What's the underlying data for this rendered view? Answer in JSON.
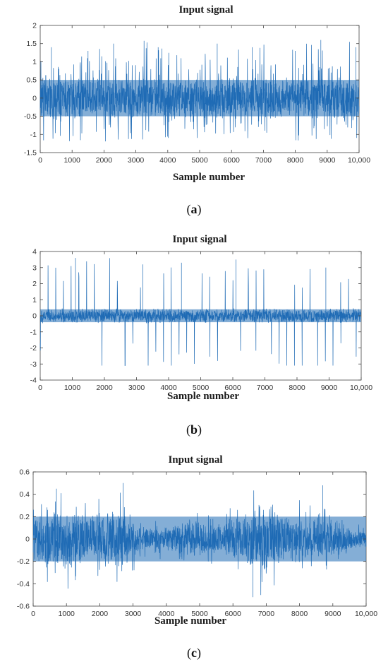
{
  "figure": {
    "panels": [
      {
        "id": "a",
        "title": "Input signal",
        "xlabel": "Sample number",
        "caption": "a"
      },
      {
        "id": "b",
        "title": "Input signal",
        "xlabel": "Sample number",
        "caption": "b"
      },
      {
        "id": "c",
        "title": "Input signal",
        "xlabel": "Sample number",
        "caption": "c"
      }
    ]
  },
  "colors": {
    "signal": "#1f6bb5",
    "axis": "#444444"
  },
  "chart_data": [
    {
      "type": "line",
      "title": "Input signal",
      "xlabel": "Sample number",
      "ylabel": "",
      "xlim": [
        0,
        10000
      ],
      "ylim": [
        -1.5,
        2
      ],
      "xticks": [
        "0",
        "1000",
        "2000",
        "3000",
        "4000",
        "5000",
        "6000",
        "7000",
        "8000",
        "9000",
        "10,000"
      ],
      "yticks": [
        "2",
        "1.5",
        "1",
        "0.5",
        "0",
        "-0.5",
        "-1",
        "-1.5"
      ],
      "series": [
        {
          "n_samples": 10000,
          "envelope": {
            "core_min": -0.5,
            "core_max": 0.5,
            "peak_max": 1.6,
            "peak_min": -1.2
          },
          "peaks": [
            {
              "x": 350,
              "y": 1.4
            },
            {
              "x": 1500,
              "y": 1.3
            },
            {
              "x": 2300,
              "y": 1.5
            },
            {
              "x": 3700,
              "y": 1.4
            },
            {
              "x": 5550,
              "y": 1.5
            },
            {
              "x": 6650,
              "y": 1.4
            },
            {
              "x": 8000,
              "y": 1.3
            },
            {
              "x": 8800,
              "y": 1.6
            },
            {
              "x": 9900,
              "y": 1.4
            }
          ]
        }
      ]
    },
    {
      "type": "line",
      "title": "Input signal",
      "xlabel": "Sample number",
      "ylabel": "",
      "xlim": [
        0,
        10000
      ],
      "ylim": [
        -4,
        4
      ],
      "xticks": [
        "0",
        "1000",
        "2000",
        "3000",
        "4000",
        "5000",
        "6000",
        "7000",
        "8000",
        "9000",
        "10,000"
      ],
      "yticks": [
        "4",
        "3",
        "2",
        "1",
        "0",
        "-1",
        "-2",
        "-3",
        "-4"
      ],
      "series": [
        {
          "n_samples": 10000,
          "envelope": {
            "core_min": -0.4,
            "core_max": 0.4,
            "peak_max": 3.6,
            "peak_min": -3.1
          },
          "peaks": [
            {
              "x": 1100,
              "y": 3.6
            },
            {
              "x": 3200,
              "y": 3.2
            },
            {
              "x": 4400,
              "y": 3.3
            },
            {
              "x": 6100,
              "y": 3.5
            },
            {
              "x": 8900,
              "y": 3.0
            }
          ]
        }
      ]
    },
    {
      "type": "line",
      "title": "Input signal",
      "xlabel": "Sample number",
      "ylabel": "",
      "xlim": [
        0,
        10000
      ],
      "ylim": [
        -0.6,
        0.6
      ],
      "xticks": [
        "0",
        "1000",
        "2000",
        "3000",
        "4000",
        "5000",
        "6000",
        "7000",
        "8000",
        "9000",
        "10,000"
      ],
      "yticks": [
        "0.6",
        "0.4",
        "0.2",
        "0",
        "-0.2",
        "-0.4",
        "-0.6"
      ],
      "series": [
        {
          "n_samples": 10000,
          "envelope": {
            "core_min": -0.2,
            "core_max": 0.2,
            "peak_max": 0.5,
            "peak_min": -0.5
          },
          "peaks": [
            {
              "x": 700,
              "y": 0.45
            },
            {
              "x": 2700,
              "y": 0.5
            },
            {
              "x": 6600,
              "y": -0.52
            },
            {
              "x": 8700,
              "y": 0.48
            }
          ]
        }
      ]
    }
  ]
}
